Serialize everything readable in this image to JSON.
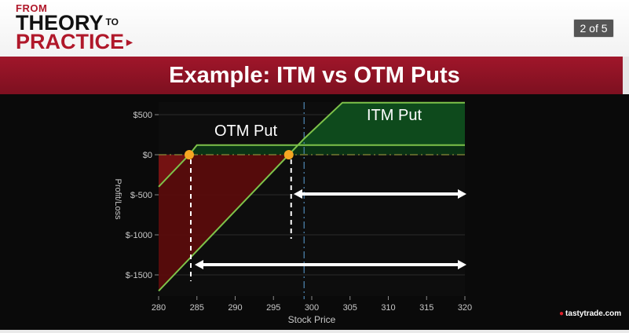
{
  "header": {
    "logo": {
      "from": "FROM",
      "theory": "THEORY",
      "to": "TO",
      "practice": "PRACTICE"
    },
    "page_indicator": "2 of 5"
  },
  "title": "Example: ITM vs OTM Puts",
  "brand": "tastytrade.com",
  "chart_data": {
    "type": "line",
    "xlabel": "Stock Price",
    "ylabel": "Profit/Loss",
    "xlim": [
      280,
      320
    ],
    "ylim": [
      -1700,
      650
    ],
    "x_ticks": [
      "280",
      "285",
      "290",
      "295",
      "300",
      "305",
      "310",
      "315",
      "320"
    ],
    "y_ticks": [
      {
        "value": 500,
        "label": "$500"
      },
      {
        "value": 0,
        "label": "$0"
      },
      {
        "value": -500,
        "label": "$-500"
      },
      {
        "value": -1000,
        "label": "$-1000"
      },
      {
        "value": -1500,
        "label": "$-1500"
      }
    ],
    "series": [
      {
        "name": "OTM Put",
        "points": [
          [
            280,
            -400
          ],
          [
            284,
            0
          ],
          [
            285,
            120
          ],
          [
            320,
            120
          ]
        ]
      },
      {
        "name": "ITM Put",
        "points": [
          [
            280,
            -1700
          ],
          [
            297,
            0
          ],
          [
            299,
            200
          ],
          [
            304,
            650
          ],
          [
            320,
            650
          ]
        ]
      }
    ],
    "breakeven_points": [
      284,
      297
    ],
    "current_price": 299,
    "colors": {
      "green": "#7ec24a",
      "green_fill": "#0e4a1c",
      "red_fill": "#5a0c0c",
      "orange": "#f5a623",
      "axis_text": "#c8c8c8"
    }
  }
}
